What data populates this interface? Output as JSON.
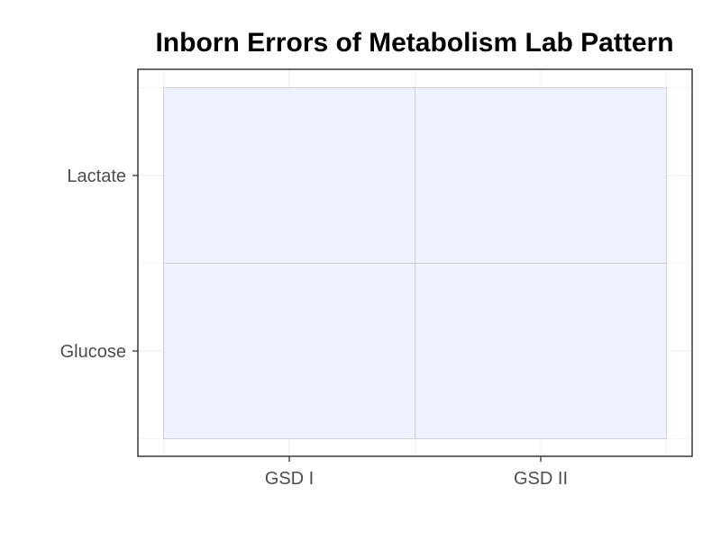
{
  "chart_data": {
    "type": "heatmap",
    "title": "Inborn Errors of Metabolism Lab Pattern",
    "xlabel": "",
    "ylabel": "",
    "x_categories": [
      "GSD I",
      "GSD II"
    ],
    "y_categories": [
      "Glucose",
      "Lactate"
    ],
    "cells": [
      {
        "x": "GSD I",
        "y": "Glucose",
        "value": null
      },
      {
        "x": "GSD II",
        "y": "Glucose",
        "value": null
      },
      {
        "x": "GSD I",
        "y": "Lactate",
        "value": null
      },
      {
        "x": "GSD II",
        "y": "Lactate",
        "value": null
      }
    ],
    "grid": true,
    "legend": "none",
    "colors": {
      "cell_fill": "#eef2ff",
      "cell_border": "#c8c8c8",
      "panel_border": "#1a1a1a",
      "grid": "#ebebeb",
      "tick_text": "#4d4d4d"
    }
  }
}
